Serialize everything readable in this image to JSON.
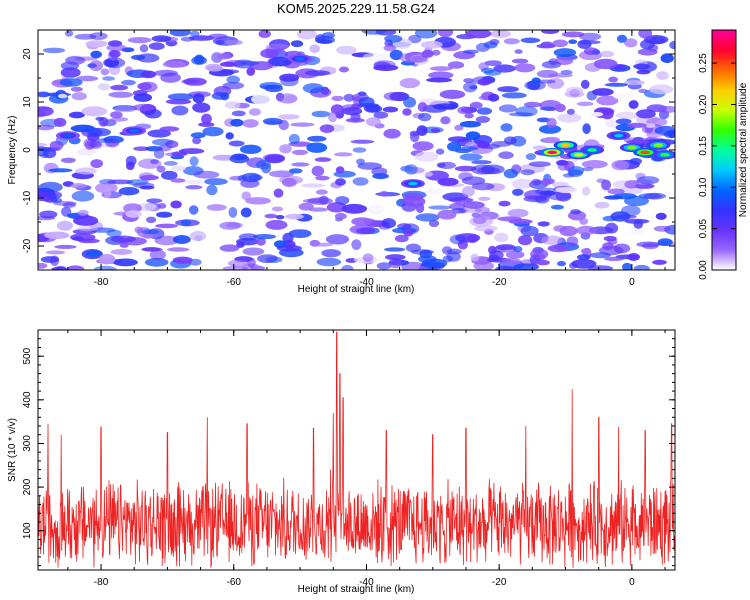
{
  "figure": {
    "title": "KOM5.2025.229.11.58.G24"
  },
  "chart_data": [
    {
      "type": "heatmap",
      "xlabel": "Height of straight line (km)",
      "ylabel": "Frequency (Hz)",
      "xlim": [
        -89.5,
        6.5
      ],
      "ylim": [
        -25,
        25
      ],
      "x_ticks": [
        -80,
        -60,
        -40,
        -20,
        0
      ],
      "y_ticks": [
        -20,
        -10,
        0,
        10,
        20
      ],
      "colorbar": {
        "label": "Normalized spectral amplitude",
        "range": [
          0,
          0.29
        ],
        "ticks": [
          0.0,
          0.05,
          0.1,
          0.15,
          0.2,
          0.25
        ],
        "tick_labels": [
          "0.00",
          "0.05",
          "0.10",
          "0.15",
          "0.20",
          "0.25"
        ],
        "colormap": [
          "#ffffff",
          "#9966ff",
          "#6633ff",
          "#3333ff",
          "#0066ff",
          "#00ccff",
          "#00ff99",
          "#33ff00",
          "#ccff00",
          "#ffcc00",
          "#ff6600",
          "#ff0033",
          "#ff0099"
        ]
      },
      "hotspots": [
        {
          "x": -12,
          "y": -0.5,
          "amp": 0.29
        },
        {
          "x": -10,
          "y": 1,
          "amp": 0.22
        },
        {
          "x": -8,
          "y": -1,
          "amp": 0.2
        },
        {
          "x": -6,
          "y": 0,
          "amp": 0.15
        },
        {
          "x": 0,
          "y": 0.5,
          "amp": 0.18
        },
        {
          "x": 2,
          "y": -0.5,
          "amp": 0.25
        },
        {
          "x": 4,
          "y": 1,
          "amp": 0.18
        },
        {
          "x": 5,
          "y": -1,
          "amp": 0.16
        },
        {
          "x": -2,
          "y": 3,
          "amp": 0.12
        },
        {
          "x": -33,
          "y": -7,
          "amp": 0.12
        },
        {
          "x": -50,
          "y": 19,
          "amp": 0.1
        },
        {
          "x": -75,
          "y": 4,
          "amp": 0.1
        },
        {
          "x": -85,
          "y": 3,
          "amp": 0.09
        }
      ],
      "background_amplitude_range": [
        0.0,
        0.09
      ]
    },
    {
      "type": "line",
      "xlabel": "Height of straight line (km)",
      "ylabel": "SNR (10 * v/v)",
      "xlim": [
        -89.5,
        6.5
      ],
      "ylim": [
        10,
        560
      ],
      "x_ticks": [
        -80,
        -60,
        -40,
        -20,
        0
      ],
      "y_ticks": [
        100,
        200,
        300,
        400,
        500
      ],
      "series": [
        {
          "color": "#ee2222",
          "baseline": 115,
          "noise_amplitude": 110,
          "peaks": [
            {
              "x": -44.5,
              "y": 555
            },
            {
              "x": -44,
              "y": 460
            },
            {
              "x": -43.5,
              "y": 405
            },
            {
              "x": -45,
              "y": 370
            },
            {
              "x": -9,
              "y": 425
            },
            {
              "x": -64,
              "y": 360
            },
            {
              "x": -5,
              "y": 360
            },
            {
              "x": -58,
              "y": 345
            },
            {
              "x": -88,
              "y": 345
            },
            {
              "x": 6,
              "y": 345
            },
            {
              "x": -80,
              "y": 338
            },
            {
              "x": -48,
              "y": 335
            },
            {
              "x": -37,
              "y": 330
            },
            {
              "x": -25,
              "y": 335
            },
            {
              "x": -16,
              "y": 340
            },
            {
              "x": -2,
              "y": 338
            },
            {
              "x": -70,
              "y": 325
            },
            {
              "x": -86,
              "y": 320
            },
            {
              "x": -30,
              "y": 320
            },
            {
              "x": 2,
              "y": 330
            }
          ]
        }
      ]
    }
  ]
}
